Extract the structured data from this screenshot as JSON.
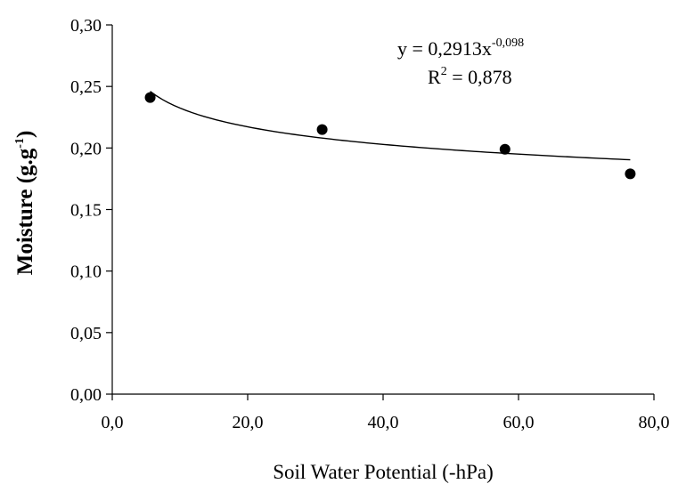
{
  "chart_data": {
    "type": "scatter",
    "title": "",
    "xlabel": "Soil Water Potential (-hPa)",
    "ylabel": "Moisture (g.g",
    "ylabel_sup": "-1",
    "ylabel_close": ")",
    "xlim": [
      0,
      80
    ],
    "ylim": [
      0,
      0.3
    ],
    "x_ticks": [
      0,
      20,
      40,
      60,
      80
    ],
    "x_tick_labels": [
      "0,0",
      "20,0",
      "40,0",
      "60,0",
      "80,0"
    ],
    "y_ticks": [
      0,
      0.05,
      0.1,
      0.15,
      0.2,
      0.25,
      0.3
    ],
    "y_tick_labels": [
      "0,00",
      "0,05",
      "0,10",
      "0,15",
      "0,20",
      "0,25",
      "0,30"
    ],
    "grid": false,
    "series": [
      {
        "points": [
          {
            "x": 5.6,
            "y": 0.241
          },
          {
            "x": 31.0,
            "y": 0.215
          },
          {
            "x": 58.0,
            "y": 0.199
          },
          {
            "x": 76.5,
            "y": 0.179
          }
        ]
      }
    ],
    "trendline": {
      "type": "power",
      "a": 0.2913,
      "b": -0.098,
      "x_range": [
        5.6,
        76.5
      ]
    },
    "annotations": {
      "equation_prefix": "y = 0,2913x",
      "equation_exponent": "-0,098",
      "r2_prefix": "R",
      "r2_sup": "2",
      "r2_suffix": " = 0,878"
    },
    "colors": {
      "axis": "#000000",
      "marker": "#000000",
      "trendline": "#000000"
    }
  }
}
